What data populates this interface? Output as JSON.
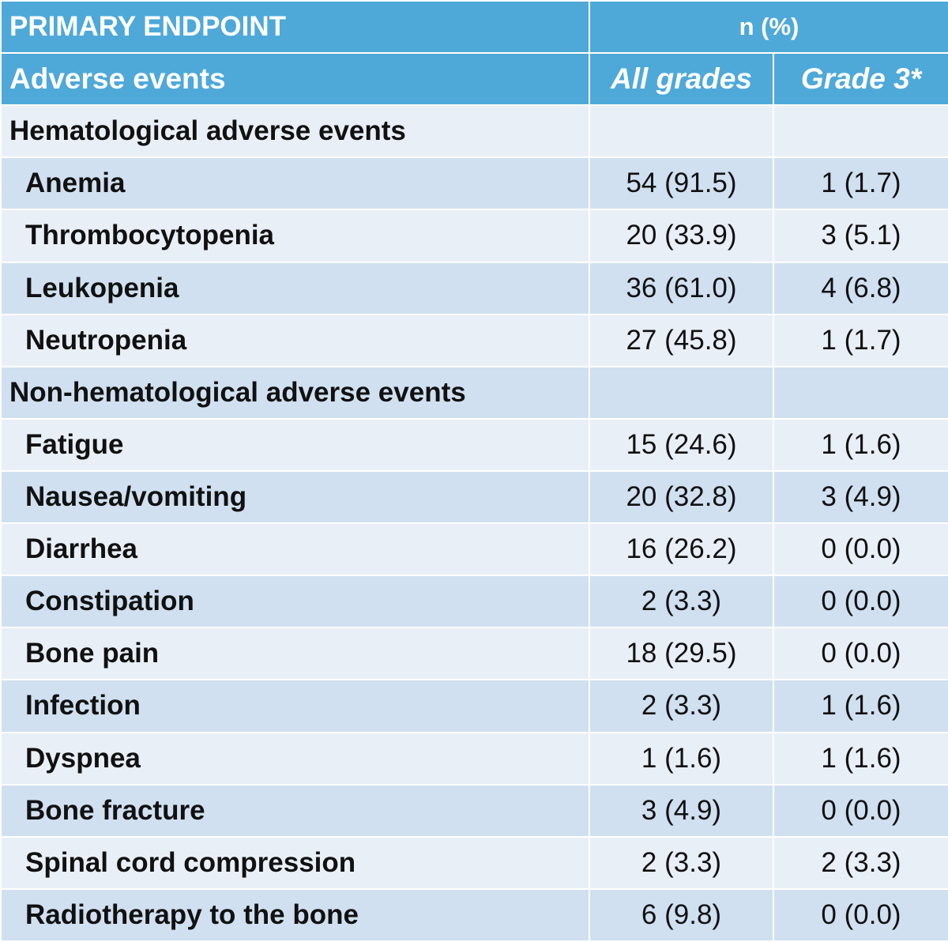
{
  "header": {
    "title": "PRIMARY ENDPOINT",
    "n_label": "n (%)",
    "col_label": "Adverse events",
    "col_all": "All grades",
    "col_g3": "Grade 3*"
  },
  "sections": [
    {
      "title": "Hematological adverse events",
      "rows": [
        [
          "Anemia",
          "54 (91.5)",
          "1 (1.7)"
        ],
        [
          "Thrombocytopenia",
          "20 (33.9)",
          "3 (5.1)"
        ],
        [
          "Leukopenia",
          "36 (61.0)",
          "4 (6.8)"
        ],
        [
          "Neutropenia",
          "27 (45.8)",
          "1 (1.7)"
        ]
      ]
    },
    {
      "title": "Non-hematological adverse events",
      "rows": [
        [
          "Fatigue",
          "15 (24.6)",
          "1 (1.6)"
        ],
        [
          "Nausea/vomiting",
          "20 (32.8)",
          "3 (4.9)"
        ],
        [
          "Diarrhea",
          "16 (26.2)",
          "0 (0.0)"
        ],
        [
          "Constipation",
          "2 (3.3)",
          "0 (0.0)"
        ],
        [
          "Bone pain",
          "18 (29.5)",
          "0 (0.0)"
        ],
        [
          "Infection",
          "2 (3.3)",
          "1 (1.6)"
        ],
        [
          "Dyspnea",
          "1 (1.6)",
          "1 (1.6)"
        ],
        [
          "Bone fracture",
          "3 (4.9)",
          "0 (0.0)"
        ],
        [
          "Spinal cord compression",
          "2 (3.3)",
          "2 (3.3)"
        ],
        [
          "Radiotherapy to the bone",
          "6 (9.8)",
          "0 (0.0)"
        ]
      ]
    }
  ]
}
